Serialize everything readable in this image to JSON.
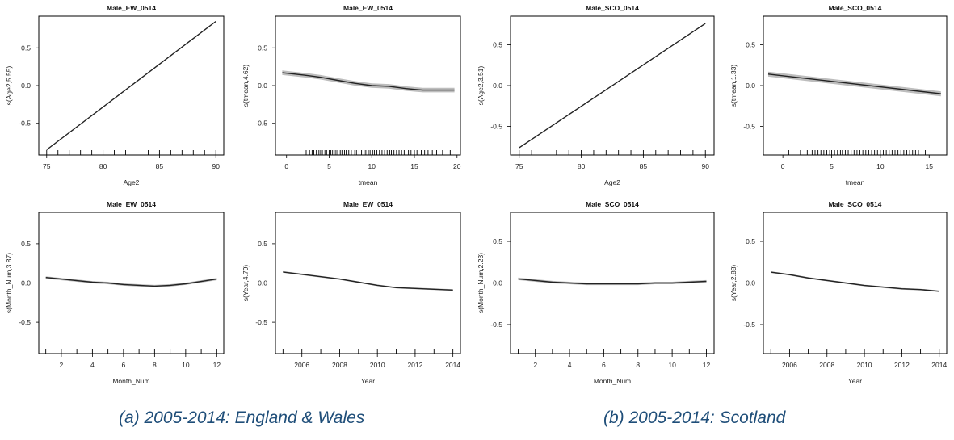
{
  "chart_data": [
    {
      "type": "line",
      "title": "Male_EW_0514",
      "xlabel": "Age2",
      "ylabel": "s(Age2,5.55)",
      "x_ticks": [
        75,
        80,
        85,
        90
      ],
      "y_ticks": [
        -0.5,
        0.0,
        0.5
      ],
      "y_tick_labels": [
        "-0.5",
        "0.0",
        "0.5"
      ],
      "xlim": [
        74.3,
        90.7
      ],
      "ylim": [
        -0.92,
        0.92
      ],
      "x": [
        75,
        90
      ],
      "y": [
        -0.85,
        0.85
      ],
      "band": 0,
      "rug": [
        75,
        76,
        77,
        78,
        79,
        80,
        81,
        82,
        83,
        84,
        85,
        86,
        87,
        88,
        89,
        90
      ]
    },
    {
      "type": "line",
      "title": "Male_EW_0514",
      "xlabel": "tmean",
      "ylabel": "s(tmean,4.62)",
      "x_ticks": [
        0,
        5,
        10,
        15,
        20
      ],
      "y_ticks": [
        -0.5,
        0.0,
        0.5
      ],
      "y_tick_labels": [
        "-0.5",
        "0.0",
        "0.5"
      ],
      "xlim": [
        -1.3,
        20.4
      ],
      "ylim": [
        -0.92,
        0.92
      ],
      "x": [
        -0.5,
        2,
        4,
        6,
        8,
        10,
        12,
        14,
        15,
        16,
        17,
        18,
        19.7
      ],
      "y": [
        0.17,
        0.14,
        0.11,
        0.07,
        0.03,
        0.0,
        -0.01,
        -0.04,
        -0.05,
        -0.06,
        -0.06,
        -0.06,
        -0.06
      ],
      "band": 0.03,
      "rug": [
        2.3,
        2.7,
        3.0,
        3.2,
        3.5,
        3.8,
        4.0,
        4.2,
        4.5,
        4.7,
        5.0,
        5.2,
        5.4,
        5.6,
        5.8,
        6.0,
        6.3,
        6.5,
        6.8,
        7.0,
        7.3,
        7.6,
        8.0,
        8.2,
        8.5,
        8.8,
        9.1,
        9.3,
        9.6,
        9.8,
        10.1,
        10.3,
        10.6,
        10.9,
        11.2,
        11.5,
        11.8,
        12.1,
        12.3,
        12.6,
        12.9,
        13.2,
        13.5,
        13.8,
        14.0,
        14.3,
        14.6,
        15.0,
        15.3,
        15.8,
        16.2,
        16.6,
        17.1,
        17.6,
        18.3,
        19.2
      ]
    },
    {
      "type": "line",
      "title": "Male_SCO_0514",
      "xlabel": "Age2",
      "ylabel": "s(Age2,3.51)",
      "x_ticks": [
        75,
        80,
        85,
        90
      ],
      "y_ticks": [
        -0.5,
        0.0,
        0.5
      ],
      "y_tick_labels": [
        "-0.5",
        "0.0",
        "0.5"
      ],
      "xlim": [
        74.3,
        90.7
      ],
      "ylim": [
        -0.85,
        0.85
      ],
      "x": [
        75,
        90
      ],
      "y": [
        -0.76,
        0.76
      ],
      "band": 0,
      "rug": [
        75,
        76,
        77,
        78,
        79,
        80,
        81,
        82,
        83,
        84,
        85,
        86,
        87,
        88,
        89,
        90
      ]
    },
    {
      "type": "line",
      "title": "Male_SCO_0514",
      "xlabel": "tmean",
      "ylabel": "s(tmean,1.33)",
      "x_ticks": [
        0,
        5,
        10,
        15
      ],
      "y_ticks": [
        -0.5,
        0.0,
        0.5
      ],
      "y_tick_labels": [
        "-0.5",
        "0.0",
        "0.5"
      ],
      "xlim": [
        -2.0,
        16.8
      ],
      "ylim": [
        -0.85,
        0.85
      ],
      "x": [
        -1.5,
        16.2
      ],
      "y": [
        0.14,
        -0.1
      ],
      "band": 0.03,
      "rug": [
        0.6,
        1.8,
        2.5,
        3.0,
        3.3,
        3.6,
        3.9,
        4.2,
        4.5,
        4.8,
        5.0,
        5.3,
        5.6,
        5.9,
        6.1,
        6.4,
        6.7,
        7.0,
        7.3,
        7.6,
        7.9,
        8.2,
        8.5,
        8.8,
        9.1,
        9.4,
        9.7,
        10.0,
        10.3,
        10.6,
        10.9,
        11.2,
        11.5,
        11.8,
        12.1,
        12.4,
        12.7,
        13.0,
        13.3,
        13.6,
        13.9,
        14.6
      ]
    },
    {
      "type": "line",
      "title": "Male_EW_0514",
      "xlabel": "Month_Num",
      "ylabel": "s(Month_Num,3.87)",
      "x_ticks": [
        2,
        4,
        6,
        8,
        10,
        12
      ],
      "y_ticks": [
        -0.5,
        0.0,
        0.5
      ],
      "y_tick_labels": [
        "-0.5",
        "0.0",
        "0.5"
      ],
      "xlim": [
        0.55,
        12.45
      ],
      "ylim": [
        -0.9,
        0.9
      ],
      "x": [
        1,
        2,
        3,
        4,
        5,
        6,
        7,
        8,
        9,
        10,
        11,
        12
      ],
      "y": [
        0.07,
        0.05,
        0.03,
        0.01,
        0.0,
        -0.02,
        -0.03,
        -0.04,
        -0.03,
        -0.01,
        0.02,
        0.05
      ],
      "band": 0.015,
      "rug": [
        1,
        2,
        3,
        4,
        5,
        6,
        7,
        8,
        9,
        10,
        11,
        12
      ]
    },
    {
      "type": "line",
      "title": "Male_EW_0514",
      "xlabel": "Year",
      "ylabel": "s(Year,4.79)",
      "x_ticks": [
        2006,
        2008,
        2010,
        2012,
        2014
      ],
      "y_ticks": [
        -0.5,
        0.0,
        0.5
      ],
      "y_tick_labels": [
        "-0.5",
        "0.0",
        "0.5"
      ],
      "xlim": [
        2004.6,
        2014.4
      ],
      "ylim": [
        -0.9,
        0.9
      ],
      "x": [
        2005,
        2006,
        2007,
        2008,
        2009,
        2010,
        2011,
        2012,
        2013,
        2014
      ],
      "y": [
        0.14,
        0.11,
        0.08,
        0.05,
        0.01,
        -0.03,
        -0.06,
        -0.07,
        -0.08,
        -0.09
      ],
      "band": 0.01,
      "rug": [
        2005,
        2006,
        2007,
        2008,
        2009,
        2010,
        2011,
        2012,
        2013,
        2014
      ]
    },
    {
      "type": "line",
      "title": "Male_SCO_0514",
      "xlabel": "Month_Num",
      "ylabel": "s(Month_Num,2.23)",
      "x_ticks": [
        2,
        4,
        6,
        8,
        10,
        12
      ],
      "y_ticks": [
        -0.5,
        0.0,
        0.5
      ],
      "y_tick_labels": [
        "-0.5",
        "0.0",
        "0.5"
      ],
      "xlim": [
        0.55,
        12.45
      ],
      "ylim": [
        -0.85,
        0.85
      ],
      "x": [
        1,
        2,
        3,
        4,
        5,
        6,
        7,
        8,
        9,
        10,
        11,
        12
      ],
      "y": [
        0.05,
        0.03,
        0.01,
        0.0,
        -0.01,
        -0.01,
        -0.01,
        -0.01,
        0.0,
        0.0,
        0.01,
        0.02
      ],
      "band": 0.015,
      "rug": [
        1,
        2,
        3,
        4,
        5,
        6,
        7,
        8,
        9,
        10,
        11,
        12
      ]
    },
    {
      "type": "line",
      "title": "Male_SCO_0514",
      "xlabel": "Year",
      "ylabel": "s(Year,2.88)",
      "x_ticks": [
        2006,
        2008,
        2010,
        2012,
        2014
      ],
      "y_ticks": [
        -0.5,
        0.0,
        0.5
      ],
      "y_tick_labels": [
        "-0.5",
        "0.0",
        "0.5"
      ],
      "xlim": [
        2004.6,
        2014.4
      ],
      "ylim": [
        -0.85,
        0.85
      ],
      "x": [
        2005,
        2006,
        2007,
        2008,
        2009,
        2010,
        2011,
        2012,
        2013,
        2014
      ],
      "y": [
        0.13,
        0.1,
        0.06,
        0.03,
        0.0,
        -0.03,
        -0.05,
        -0.07,
        -0.08,
        -0.1
      ],
      "band": 0.01,
      "rug": [
        2005,
        2006,
        2007,
        2008,
        2009,
        2010,
        2011,
        2012,
        2013,
        2014
      ]
    }
  ],
  "captions": {
    "a": "(a)  2005-2014: England & Wales",
    "b": "(b)  2005-2014: Scotland"
  }
}
